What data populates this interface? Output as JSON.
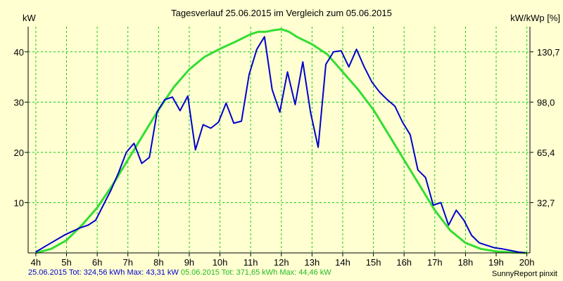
{
  "chart_data": {
    "type": "line",
    "title": "Tagesverlauf 25.06.2015 im Vergleich zum 05.06.2015",
    "ylabel_left": "kW",
    "ylabel_right": "kW/kWp [%]",
    "x_ticks": [
      "4h",
      "5h",
      "6h",
      "7h",
      "8h",
      "9h",
      "10h",
      "11h",
      "12h",
      "13h",
      "14h",
      "15h",
      "16h",
      "17h",
      "18h",
      "19h",
      "20h"
    ],
    "y_ticks_left": [
      "10",
      "20",
      "30",
      "40"
    ],
    "y_ticks_right": [
      "32,7",
      "65,4",
      "98,0",
      "130,7"
    ],
    "xlim": [
      3.75,
      20.1
    ],
    "ylim": [
      0,
      45
    ],
    "grid": true,
    "series": [
      {
        "color": "#0000cc",
        "x": [
          4.0,
          4.5,
          4.95,
          5.2,
          5.45,
          5.7,
          5.95,
          6.2,
          6.45,
          6.7,
          6.95,
          7.2,
          7.45,
          7.7,
          7.95,
          8.2,
          8.45,
          8.7,
          8.95,
          9.2,
          9.45,
          9.7,
          9.95,
          10.2,
          10.45,
          10.7,
          10.95,
          11.2,
          11.45,
          11.7,
          11.95,
          12.2,
          12.45,
          12.7,
          12.95,
          13.2,
          13.45,
          13.7,
          13.95,
          14.2,
          14.45,
          14.7,
          14.95,
          15.2,
          15.45,
          15.7,
          15.95,
          16.2,
          16.45,
          16.7,
          16.95,
          17.2,
          17.45,
          17.7,
          17.95,
          18.2,
          18.45,
          18.7,
          18.95,
          19.2,
          19.45,
          19.7,
          19.95
        ],
        "y": [
          0.2,
          2.0,
          3.6,
          4.3,
          5.0,
          5.5,
          6.5,
          9.5,
          12.5,
          16.0,
          20.0,
          21.8,
          17.8,
          19.0,
          28.0,
          30.5,
          31.0,
          28.3,
          31.2,
          20.5,
          25.5,
          24.8,
          26.0,
          29.8,
          25.8,
          26.2,
          35.5,
          40.5,
          43.0,
          32.5,
          28.0,
          36.0,
          29.5,
          38.0,
          28.0,
          21.0,
          37.5,
          40.0,
          40.2,
          37.0,
          40.5,
          37.0,
          34.0,
          32.0,
          30.5,
          29.2,
          26.0,
          23.5,
          16.5,
          15.0,
          9.5,
          10.0,
          5.5,
          8.5,
          6.5,
          3.5,
          2.0,
          1.5,
          1.0,
          0.8,
          0.5,
          0.2,
          0.0
        ]
      },
      {
        "color": "#33dd33",
        "x": [
          4.0,
          4.5,
          5.0,
          5.5,
          6.0,
          6.5,
          7.0,
          7.5,
          8.0,
          8.5,
          9.0,
          9.5,
          10.0,
          10.5,
          11.0,
          11.25,
          11.5,
          11.75,
          12.0,
          12.25,
          12.5,
          13.0,
          13.5,
          14.0,
          14.5,
          15.0,
          15.5,
          16.0,
          16.5,
          17.0,
          17.5,
          18.0,
          18.5,
          19.0,
          19.5,
          20.0
        ],
        "y": [
          0.0,
          0.8,
          2.5,
          5.5,
          9.0,
          13.5,
          18.5,
          23.5,
          28.5,
          33.0,
          36.5,
          39.0,
          40.6,
          42.0,
          43.5,
          44.0,
          44.0,
          44.3,
          44.5,
          44.0,
          43.0,
          41.5,
          39.5,
          36.0,
          32.5,
          28.5,
          23.5,
          18.5,
          13.5,
          8.5,
          4.5,
          2.0,
          0.8,
          0.3,
          0.1,
          0.0
        ]
      }
    ]
  },
  "footer": {
    "series1_text": "25.06.2015 Tot: 324,56 kWh Max: 43,31 kW",
    "series2_text": "05.06.2015 Tot: 371,65 kWh Max: 44,46 kW",
    "brand": "SunnyReport pinxit"
  }
}
